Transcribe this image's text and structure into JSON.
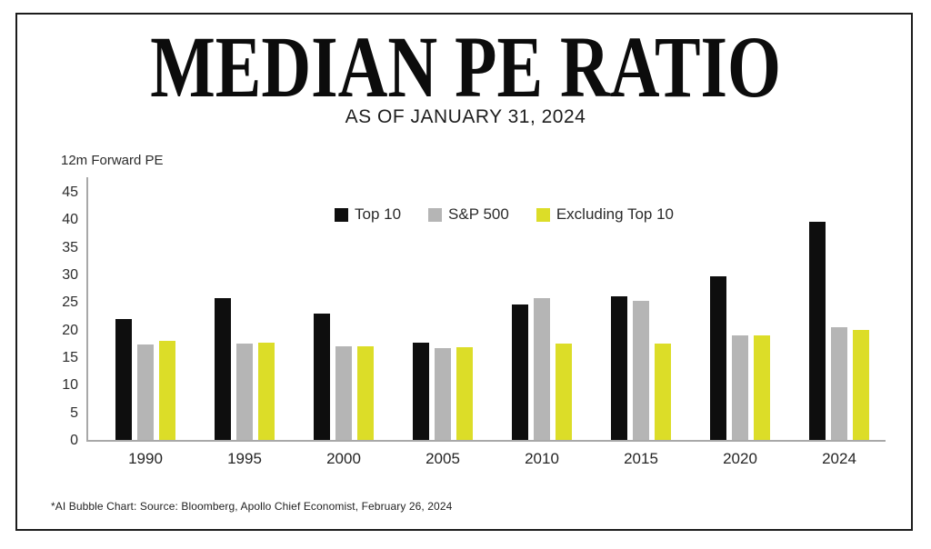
{
  "page": {
    "title": "MEDIAN PE RATIO",
    "subtitle": "AS OF JANUARY 31, 2024",
    "footnote": "*AI Bubble Chart: Source: Bloomberg, Apollo Chief Economist, February 26, 2024"
  },
  "chart_data": {
    "type": "bar",
    "title": "MEDIAN PE RATIO",
    "subtitle": "AS OF JANUARY 31, 2024",
    "ylabel": "12m Forward PE",
    "xlabel": "",
    "ylim": [
      0,
      45
    ],
    "yticks": [
      0,
      5,
      10,
      15,
      20,
      25,
      30,
      35,
      40,
      45
    ],
    "grid": false,
    "legend_position": "top-center",
    "categories": [
      "1990",
      "1995",
      "2000",
      "2005",
      "2010",
      "2015",
      "2020",
      "2024"
    ],
    "series": [
      {
        "name": "Top 10",
        "color": "#0e0e0e",
        "values": [
          22.0,
          25.7,
          22.9,
          17.7,
          24.5,
          26.1,
          29.6,
          39.6
        ]
      },
      {
        "name": "S&P 500",
        "color": "#b5b5b5",
        "values": [
          17.3,
          17.4,
          16.9,
          16.6,
          25.7,
          25.3,
          19.0,
          20.5
        ]
      },
      {
        "name": "Excluding Top 10",
        "color": "#dcdd28",
        "values": [
          17.9,
          17.7,
          16.9,
          16.8,
          17.4,
          17.4,
          18.9,
          20.0
        ]
      }
    ]
  },
  "colors": {
    "frame_border": "#1c1c1c",
    "axis": "#a8a8a8",
    "text": "#2d2d2d"
  }
}
